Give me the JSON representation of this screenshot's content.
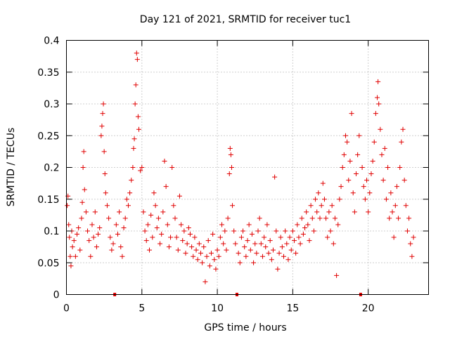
{
  "chart_data": {
    "type": "scatter",
    "title": "Day 121 of 2021, SRMTID for receiver tuc1",
    "xlabel": "GPS time / hours",
    "ylabel": "SRMTID / TECUs",
    "xlim": [
      0,
      24
    ],
    "ylim": [
      0,
      0.4
    ],
    "x_ticks": [
      0,
      5,
      10,
      15,
      20
    ],
    "x_tick_labels": [
      "0",
      "5",
      "10",
      "15",
      "20"
    ],
    "y_ticks": [
      0,
      0.05,
      0.1,
      0.15,
      0.2,
      0.25,
      0.3,
      0.35,
      0.4
    ],
    "y_tick_labels": [
      "0",
      "0.05",
      "0.1",
      "0.15",
      "0.2",
      "0.25",
      "0.3",
      "0.35",
      "0.4"
    ],
    "grid": true,
    "marker": "+",
    "color": "#e00000",
    "data_gap_markers_x": [
      3.2,
      11.3,
      19.5
    ],
    "series": [
      {
        "name": "SRMTID",
        "points": [
          [
            0.05,
            0.14
          ],
          [
            0.1,
            0.155
          ],
          [
            0.15,
            0.11
          ],
          [
            0.2,
            0.09
          ],
          [
            0.25,
            0.06
          ],
          [
            0.3,
            0.045
          ],
          [
            0.35,
            0.1
          ],
          [
            0.4,
            0.075
          ],
          [
            0.5,
            0.085
          ],
          [
            0.6,
            0.06
          ],
          [
            0.7,
            0.095
          ],
          [
            0.8,
            0.105
          ],
          [
            0.9,
            0.07
          ],
          [
            1.0,
            0.12
          ],
          [
            1.05,
            0.145
          ],
          [
            1.1,
            0.2
          ],
          [
            1.15,
            0.225
          ],
          [
            1.2,
            0.165
          ],
          [
            1.3,
            0.13
          ],
          [
            1.4,
            0.1
          ],
          [
            1.5,
            0.085
          ],
          [
            1.6,
            0.06
          ],
          [
            1.7,
            0.11
          ],
          [
            1.8,
            0.09
          ],
          [
            1.9,
            0.13
          ],
          [
            2.0,
            0.075
          ],
          [
            2.1,
            0.095
          ],
          [
            2.2,
            0.105
          ],
          [
            2.3,
            0.25
          ],
          [
            2.35,
            0.265
          ],
          [
            2.4,
            0.285
          ],
          [
            2.45,
            0.3
          ],
          [
            2.5,
            0.225
          ],
          [
            2.55,
            0.19
          ],
          [
            2.6,
            0.16
          ],
          [
            2.7,
            0.14
          ],
          [
            2.8,
            0.12
          ],
          [
            2.9,
            0.09
          ],
          [
            3.0,
            0.07
          ],
          [
            3.1,
            0.08
          ],
          [
            3.3,
            0.11
          ],
          [
            3.4,
            0.095
          ],
          [
            3.5,
            0.13
          ],
          [
            3.6,
            0.075
          ],
          [
            3.7,
            0.06
          ],
          [
            3.8,
            0.105
          ],
          [
            3.9,
            0.12
          ],
          [
            4.0,
            0.15
          ],
          [
            4.1,
            0.14
          ],
          [
            4.2,
            0.16
          ],
          [
            4.3,
            0.18
          ],
          [
            4.4,
            0.2
          ],
          [
            4.45,
            0.23
          ],
          [
            4.5,
            0.245
          ],
          [
            4.55,
            0.3
          ],
          [
            4.6,
            0.33
          ],
          [
            4.65,
            0.38
          ],
          [
            4.7,
            0.37
          ],
          [
            4.75,
            0.28
          ],
          [
            4.8,
            0.26
          ],
          [
            4.9,
            0.195
          ],
          [
            5.0,
            0.2
          ],
          [
            5.1,
            0.13
          ],
          [
            5.2,
            0.1
          ],
          [
            5.3,
            0.085
          ],
          [
            5.4,
            0.11
          ],
          [
            5.5,
            0.07
          ],
          [
            5.6,
            0.125
          ],
          [
            5.7,
            0.09
          ],
          [
            5.8,
            0.16
          ],
          [
            5.9,
            0.14
          ],
          [
            6.0,
            0.105
          ],
          [
            6.1,
            0.12
          ],
          [
            6.2,
            0.08
          ],
          [
            6.3,
            0.095
          ],
          [
            6.4,
            0.13
          ],
          [
            6.5,
            0.21
          ],
          [
            6.6,
            0.17
          ],
          [
            6.7,
            0.11
          ],
          [
            6.8,
            0.075
          ],
          [
            6.9,
            0.09
          ],
          [
            7.0,
            0.2
          ],
          [
            7.1,
            0.14
          ],
          [
            7.2,
            0.12
          ],
          [
            7.3,
            0.09
          ],
          [
            7.4,
            0.07
          ],
          [
            7.5,
            0.155
          ],
          [
            7.6,
            0.11
          ],
          [
            7.7,
            0.085
          ],
          [
            7.8,
            0.1
          ],
          [
            7.9,
            0.065
          ],
          [
            8.0,
            0.08
          ],
          [
            8.1,
            0.105
          ],
          [
            8.2,
            0.095
          ],
          [
            8.3,
            0.075
          ],
          [
            8.4,
            0.06
          ],
          [
            8.5,
            0.09
          ],
          [
            8.6,
            0.07
          ],
          [
            8.7,
            0.055
          ],
          [
            8.8,
            0.08
          ],
          [
            8.9,
            0.065
          ],
          [
            9.0,
            0.05
          ],
          [
            9.1,
            0.075
          ],
          [
            9.2,
            0.02
          ],
          [
            9.3,
            0.06
          ],
          [
            9.4,
            0.085
          ],
          [
            9.5,
            0.045
          ],
          [
            9.6,
            0.065
          ],
          [
            9.7,
            0.095
          ],
          [
            9.8,
            0.055
          ],
          [
            9.9,
            0.04
          ],
          [
            10.0,
            0.07
          ],
          [
            10.1,
            0.06
          ],
          [
            10.2,
            0.09
          ],
          [
            10.3,
            0.11
          ],
          [
            10.4,
            0.08
          ],
          [
            10.5,
            0.1
          ],
          [
            10.6,
            0.07
          ],
          [
            10.7,
            0.12
          ],
          [
            10.8,
            0.19
          ],
          [
            10.85,
            0.23
          ],
          [
            10.9,
            0.22
          ],
          [
            10.95,
            0.2
          ],
          [
            11.0,
            0.14
          ],
          [
            11.1,
            0.1
          ],
          [
            11.2,
            0.08
          ],
          [
            11.4,
            0.065
          ],
          [
            11.5,
            0.05
          ],
          [
            11.6,
            0.09
          ],
          [
            11.7,
            0.1
          ],
          [
            11.8,
            0.075
          ],
          [
            11.9,
            0.06
          ],
          [
            12.0,
            0.085
          ],
          [
            12.1,
            0.11
          ],
          [
            12.2,
            0.07
          ],
          [
            12.3,
            0.095
          ],
          [
            12.4,
            0.05
          ],
          [
            12.5,
            0.08
          ],
          [
            12.6,
            0.065
          ],
          [
            12.7,
            0.1
          ],
          [
            12.8,
            0.12
          ],
          [
            12.9,
            0.08
          ],
          [
            13.0,
            0.06
          ],
          [
            13.1,
            0.09
          ],
          [
            13.2,
            0.075
          ],
          [
            13.3,
            0.11
          ],
          [
            13.4,
            0.065
          ],
          [
            13.5,
            0.085
          ],
          [
            13.6,
            0.055
          ],
          [
            13.7,
            0.07
          ],
          [
            13.8,
            0.185
          ],
          [
            13.9,
            0.1
          ],
          [
            14.0,
            0.04
          ],
          [
            14.1,
            0.065
          ],
          [
            14.2,
            0.09
          ],
          [
            14.3,
            0.075
          ],
          [
            14.4,
            0.06
          ],
          [
            14.5,
            0.1
          ],
          [
            14.6,
            0.08
          ],
          [
            14.7,
            0.055
          ],
          [
            14.8,
            0.09
          ],
          [
            14.9,
            0.07
          ],
          [
            15.0,
            0.1
          ],
          [
            15.1,
            0.085
          ],
          [
            15.2,
            0.065
          ],
          [
            15.3,
            0.11
          ],
          [
            15.4,
            0.09
          ],
          [
            15.5,
            0.08
          ],
          [
            15.6,
            0.12
          ],
          [
            15.7,
            0.095
          ],
          [
            15.8,
            0.105
          ],
          [
            15.9,
            0.13
          ],
          [
            16.0,
            0.11
          ],
          [
            16.1,
            0.085
          ],
          [
            16.2,
            0.14
          ],
          [
            16.3,
            0.12
          ],
          [
            16.4,
            0.1
          ],
          [
            16.5,
            0.15
          ],
          [
            16.6,
            0.13
          ],
          [
            16.7,
            0.16
          ],
          [
            16.8,
            0.12
          ],
          [
            16.9,
            0.14
          ],
          [
            17.0,
            0.175
          ],
          [
            17.1,
            0.15
          ],
          [
            17.2,
            0.12
          ],
          [
            17.3,
            0.09
          ],
          [
            17.4,
            0.13
          ],
          [
            17.5,
            0.1
          ],
          [
            17.6,
            0.14
          ],
          [
            17.7,
            0.08
          ],
          [
            17.8,
            0.12
          ],
          [
            17.9,
            0.03
          ],
          [
            18.0,
            0.11
          ],
          [
            18.1,
            0.15
          ],
          [
            18.2,
            0.17
          ],
          [
            18.3,
            0.2
          ],
          [
            18.4,
            0.22
          ],
          [
            18.5,
            0.25
          ],
          [
            18.6,
            0.24
          ],
          [
            18.7,
            0.18
          ],
          [
            18.8,
            0.21
          ],
          [
            18.9,
            0.285
          ],
          [
            19.0,
            0.16
          ],
          [
            19.1,
            0.13
          ],
          [
            19.2,
            0.19
          ],
          [
            19.3,
            0.22
          ],
          [
            19.4,
            0.25
          ],
          [
            19.6,
            0.2
          ],
          [
            19.7,
            0.17
          ],
          [
            19.8,
            0.15
          ],
          [
            19.9,
            0.18
          ],
          [
            20.0,
            0.13
          ],
          [
            20.1,
            0.16
          ],
          [
            20.2,
            0.19
          ],
          [
            20.3,
            0.21
          ],
          [
            20.4,
            0.24
          ],
          [
            20.5,
            0.285
          ],
          [
            20.6,
            0.31
          ],
          [
            20.65,
            0.335
          ],
          [
            20.7,
            0.3
          ],
          [
            20.8,
            0.26
          ],
          [
            20.9,
            0.22
          ],
          [
            21.0,
            0.18
          ],
          [
            21.1,
            0.23
          ],
          [
            21.2,
            0.15
          ],
          [
            21.3,
            0.2
          ],
          [
            21.4,
            0.12
          ],
          [
            21.5,
            0.16
          ],
          [
            21.6,
            0.13
          ],
          [
            21.7,
            0.09
          ],
          [
            21.8,
            0.14
          ],
          [
            21.9,
            0.17
          ],
          [
            22.0,
            0.12
          ],
          [
            22.1,
            0.2
          ],
          [
            22.2,
            0.24
          ],
          [
            22.3,
            0.26
          ],
          [
            22.4,
            0.18
          ],
          [
            22.5,
            0.14
          ],
          [
            22.6,
            0.1
          ],
          [
            22.7,
            0.12
          ],
          [
            22.8,
            0.08
          ],
          [
            22.9,
            0.06
          ],
          [
            23.0,
            0.09
          ]
        ]
      }
    ]
  }
}
